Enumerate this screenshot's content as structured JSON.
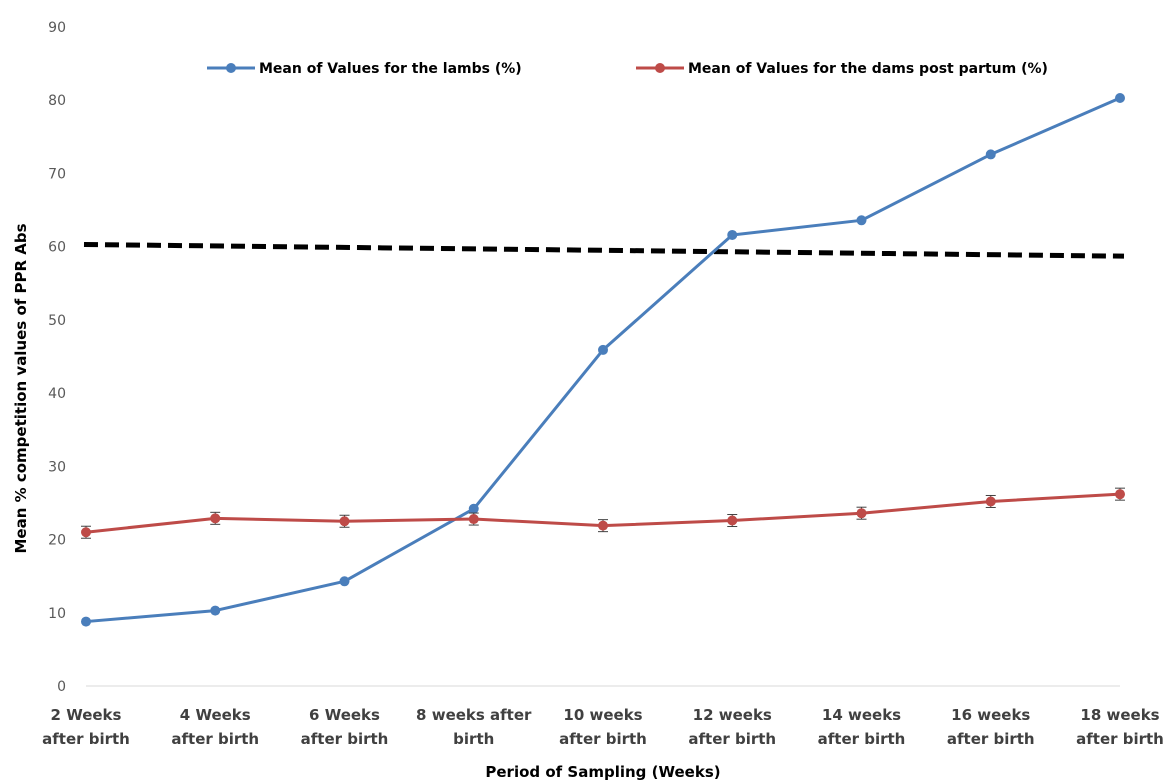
{
  "chart_data": {
    "type": "line",
    "title": "",
    "xlabel": "Period of Sampling (Weeks)",
    "ylabel": "Mean % competition values of PPR Abs",
    "ylim": [
      0,
      90
    ],
    "yticks": [
      0,
      10,
      20,
      30,
      40,
      50,
      60,
      70,
      80,
      90
    ],
    "categories": [
      [
        "2 Weeks",
        "after birth"
      ],
      [
        "4 Weeks",
        "after birth"
      ],
      [
        "6 Weeks",
        "after birth"
      ],
      [
        "8 weeks after",
        "birth"
      ],
      [
        "10 weeks",
        "after birth"
      ],
      [
        "12 weeks",
        "after birth"
      ],
      [
        "14 weeks",
        "after birth"
      ],
      [
        "16 weeks",
        "after birth"
      ],
      [
        "18 weeks",
        "after birth"
      ]
    ],
    "grid": false,
    "legend_position": "top",
    "series": [
      {
        "name": "Mean of Values for the lambs (%)",
        "color": "#4A7EBB",
        "marker": "circle",
        "values": [
          8.8,
          10.3,
          14.3,
          24.2,
          45.9,
          61.6,
          63.6,
          72.6,
          80.3
        ]
      },
      {
        "name": "Mean of Values for the dams post partum (%)",
        "color": "#BE4B48",
        "marker": "circle",
        "error_bars": true,
        "values": [
          21.0,
          22.9,
          22.5,
          22.8,
          21.9,
          22.6,
          23.6,
          25.2,
          26.2
        ]
      }
    ],
    "reference_line": {
      "style": "dashed",
      "color": "#000000",
      "start": 60.3,
      "end": 58.7
    }
  }
}
